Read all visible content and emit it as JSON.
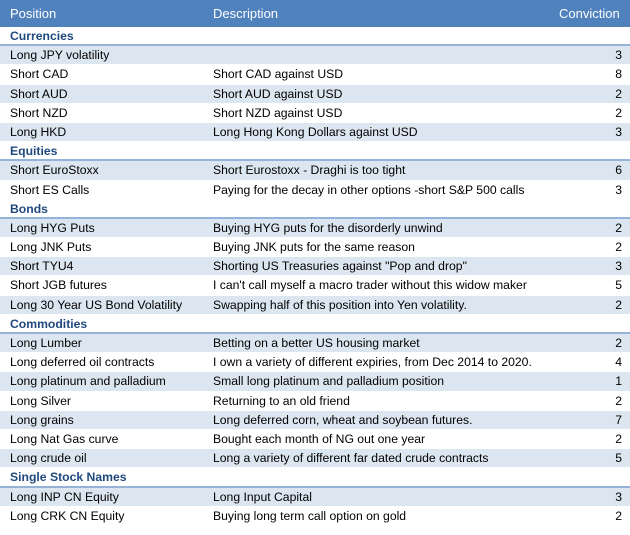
{
  "columns": {
    "position": "Position",
    "description": "Description",
    "conviction": "Conviction"
  },
  "colors": {
    "header_bg": "#4f81bd",
    "band": "#dce6f1",
    "section_text": "#1f497d",
    "section_rule": "#95b3d7"
  },
  "sections": [
    {
      "title": "Currencies",
      "rows": [
        {
          "position": "Long JPY volatility",
          "description": "",
          "conviction": "3"
        },
        {
          "position": "Short CAD",
          "description": "Short CAD against USD",
          "conviction": "8"
        },
        {
          "position": "Short AUD",
          "description": "Short AUD against USD",
          "conviction": "2"
        },
        {
          "position": "Short NZD",
          "description": "Short NZD against USD",
          "conviction": "2"
        },
        {
          "position": "Long HKD",
          "description": "Long Hong Kong Dollars against USD",
          "conviction": "3"
        }
      ]
    },
    {
      "title": "Equities",
      "rows": [
        {
          "position": "Short EuroStoxx",
          "description": "Short Eurostoxx - Draghi is too tight",
          "conviction": "6"
        },
        {
          "position": "Short ES Calls",
          "description": "Paying for the decay in other options -short S&P 500 calls",
          "conviction": "3"
        }
      ]
    },
    {
      "title": "Bonds",
      "rows": [
        {
          "position": "Long HYG Puts",
          "description": "Buying HYG puts for the disorderly unwind",
          "conviction": "2"
        },
        {
          "position": "Long JNK Puts",
          "description": "Buying JNK puts for the same reason",
          "conviction": "2"
        },
        {
          "position": "Short TYU4",
          "description": "Shorting US Treasuries against \"Pop and drop\"",
          "conviction": "3"
        },
        {
          "position": "Short JGB futures",
          "description": "I can't call myself a macro trader without this widow maker",
          "conviction": "5"
        },
        {
          "position": "Long 30 Year US Bond Volatility",
          "description": "Swapping half of this position into Yen volatility.",
          "conviction": "2"
        }
      ]
    },
    {
      "title": "Commodities",
      "rows": [
        {
          "position": "Long Lumber",
          "description": "Betting on a better US housing market",
          "conviction": "2"
        },
        {
          "position": "Long deferred oil contracts",
          "description": "I own a variety of different expiries, from Dec 2014 to 2020.",
          "conviction": "4"
        },
        {
          "position": "Long platinum and palladium",
          "description": "Small long platinum and palladium position",
          "conviction": "1"
        },
        {
          "position": "Long Silver",
          "description": "Returning to an old friend",
          "conviction": "2"
        },
        {
          "position": "Long grains",
          "description": "Long deferred corn, wheat and soybean futures.",
          "conviction": "7"
        },
        {
          "position": "Long Nat Gas curve",
          "description": "Bought each month of NG out one year",
          "conviction": "2"
        },
        {
          "position": "Long crude oil",
          "description": "Long a variety of different far dated crude contracts",
          "conviction": "5"
        }
      ]
    },
    {
      "title": "Single Stock Names",
      "rows": [
        {
          "position": "Long INP CN Equity",
          "description": "Long Input Capital",
          "conviction": "3"
        },
        {
          "position": "Long CRK CN Equity",
          "description": "Buying long term call option on gold",
          "conviction": "2"
        }
      ]
    }
  ]
}
